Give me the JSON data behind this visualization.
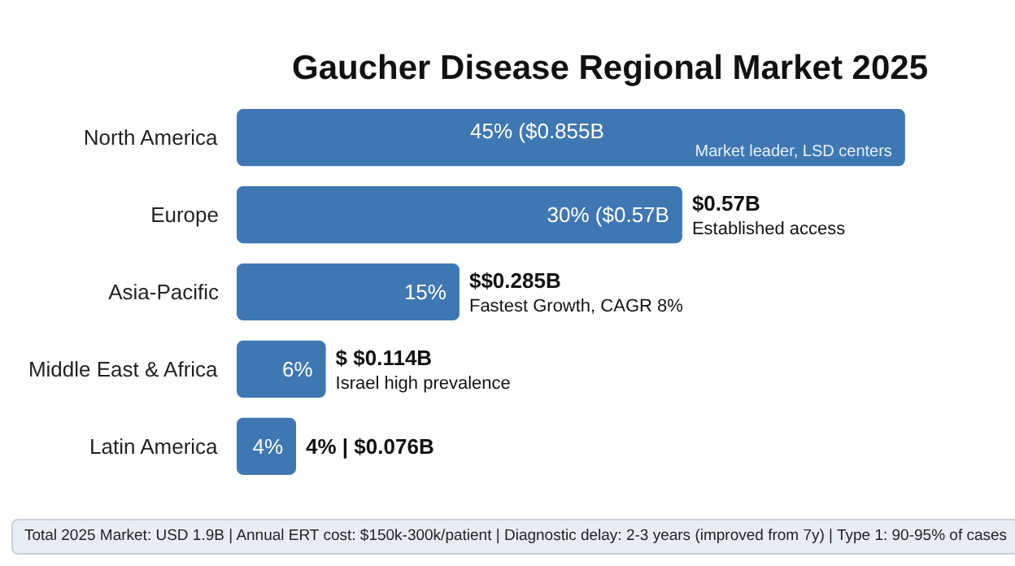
{
  "chart_data": {
    "type": "bar",
    "orientation": "horizontal",
    "title": "Gaucher Disease Regional Market 2025",
    "categories": [
      "North America",
      "Europe",
      "Asia-Pacific",
      "Middle East & Africa",
      "Latin America"
    ],
    "values": [
      45,
      30,
      15,
      6,
      4
    ],
    "color": "#3f77b3",
    "value_labels": [
      "45% ($0.855B",
      "30% ($0.57B",
      "15%",
      "6%",
      "4%"
    ],
    "annotations": [
      {
        "text": "Market leader, LSD centers",
        "x": 45,
        "y": "North America"
      },
      {
        "text": "$0.57B",
        "x": 30,
        "y": "Europe"
      },
      {
        "text": "Established access",
        "x": 30,
        "y": "Europe"
      },
      {
        "text": "$$0.285B",
        "x": 15,
        "y": "Asia-Pacific"
      },
      {
        "text": "Fastest Growth, CAGR 8%",
        "x": 15,
        "y": "Asia-Pacific"
      },
      {
        "text": "$ $0.114B",
        "x": 6,
        "y": "Middle East & Africa"
      },
      {
        "text": "Israel high prevalence",
        "x": 6,
        "y": "Middle East & Africa"
      },
      {
        "text": "4% | $0.076B",
        "x": 4,
        "y": "Latin America"
      },
      "Total 2025 Market: USD 1.9B | Annual ERT cost: $150k-300k/patient | Diagnostic delay: 2-3 years (improved from 7y) | Type 1: 90-95% of cases"
    ]
  }
}
